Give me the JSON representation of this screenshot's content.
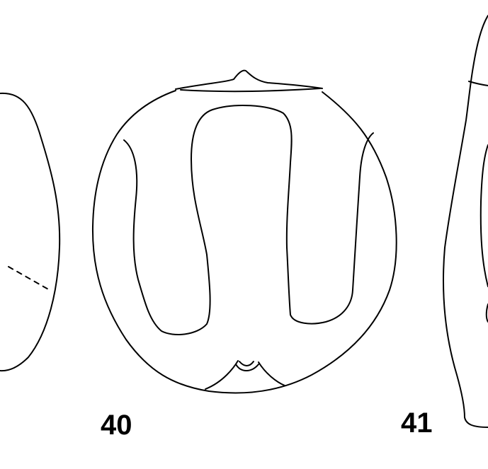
{
  "figures": [
    {
      "id": "fig-left",
      "label": ""
    },
    {
      "id": "fig-40",
      "label": "40"
    },
    {
      "id": "fig-41",
      "label": "41"
    }
  ],
  "colors": {
    "line": "#000000",
    "background": "#ffffff"
  }
}
